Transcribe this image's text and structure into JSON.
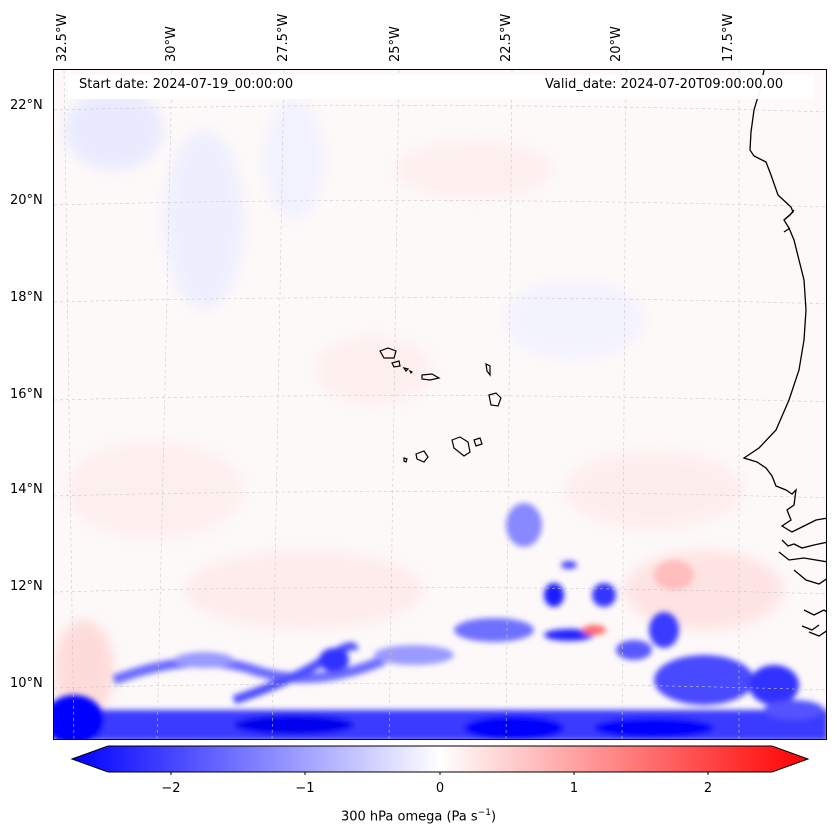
{
  "map": {
    "header": {
      "start_date": "Start date: 2024-07-19_00:00:00",
      "valid_date": "Valid_date: 2024-07-20T09:00:00.00"
    },
    "longitude_labels": [
      "32.5°W",
      "30°W",
      "27.5°W",
      "25°W",
      "22.5°W",
      "20°W",
      "17.5°W"
    ],
    "latitude_labels": [
      "22°N",
      "20°N",
      "18°N",
      "16°N",
      "14°N",
      "12°N",
      "10°N"
    ],
    "region": "Cape Verde Islands and West African coast",
    "colorbar": {
      "label": "300 hPa omega (Pa s",
      "label_exp": "−1",
      "label_close": ")",
      "ticks": [
        "−2",
        "−1",
        "0",
        "1",
        "2"
      ],
      "min": -2.6,
      "max": 2.6,
      "color_low": "#0000ff",
      "color_mid": "#ffffff",
      "color_high": "#ff0000"
    }
  }
}
